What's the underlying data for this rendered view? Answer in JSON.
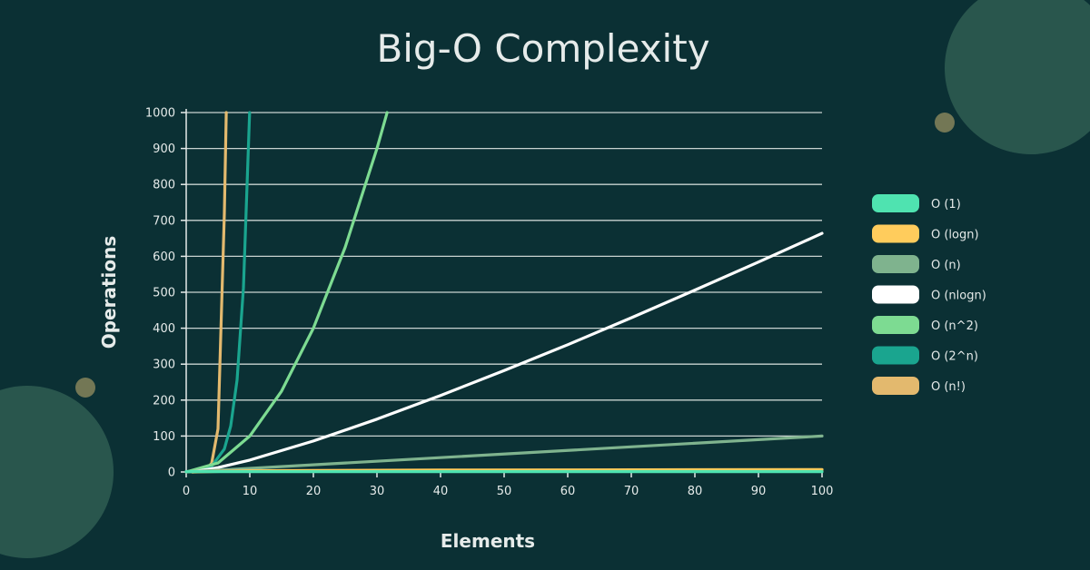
{
  "chart_data": {
    "type": "line",
    "title": "Big-O Complexity",
    "xlabel": "Elements",
    "ylabel": "Operations",
    "xlim": [
      0,
      100
    ],
    "ylim": [
      0,
      1000
    ],
    "x_ticks": [
      "0",
      "10",
      "20",
      "30",
      "40",
      "50",
      "60",
      "70",
      "80",
      "90",
      "100"
    ],
    "y_ticks": [
      "0",
      "100",
      "200",
      "300",
      "400",
      "500",
      "600",
      "700",
      "800",
      "900",
      "1000"
    ],
    "grid": true,
    "legend_position": "right",
    "series": [
      {
        "name": "O (1)",
        "color": "#4fe3b0",
        "x": [
          0,
          100
        ],
        "y": [
          1,
          1
        ]
      },
      {
        "name": "O (logn)",
        "color": "#ffcc5c",
        "x": [
          1,
          10,
          20,
          40,
          60,
          80,
          100
        ],
        "y": [
          0,
          3.3,
          4.3,
          5.3,
          5.9,
          6.3,
          6.6
        ]
      },
      {
        "name": "O (n)",
        "color": "#7fb38e",
        "x": [
          0,
          100
        ],
        "y": [
          0,
          100
        ]
      },
      {
        "name": "O (nlogn)",
        "color": "#ffffff",
        "x": [
          1,
          5,
          10,
          20,
          30,
          40,
          50,
          60,
          70,
          80,
          90,
          100
        ],
        "y": [
          0,
          12,
          33,
          86,
          147,
          213,
          282,
          354,
          429,
          506,
          584,
          664
        ]
      },
      {
        "name": "O (n^2)",
        "color": "#7ddb92",
        "x": [
          0,
          5,
          10,
          15,
          20,
          25,
          30,
          31.6
        ],
        "y": [
          0,
          25,
          100,
          225,
          400,
          625,
          900,
          1000
        ]
      },
      {
        "name": "O (2^n)",
        "color": "#1aa58f",
        "x": [
          0,
          2,
          4,
          6,
          7,
          8,
          9,
          9.97
        ],
        "y": [
          1,
          4,
          16,
          64,
          128,
          256,
          512,
          1000
        ]
      },
      {
        "name": "O (n!)",
        "color": "#e3b96e",
        "x": [
          0,
          1,
          2,
          3,
          4,
          5,
          6,
          6.3
        ],
        "y": [
          1,
          1,
          2,
          6,
          24,
          120,
          720,
          1000
        ]
      }
    ]
  }
}
